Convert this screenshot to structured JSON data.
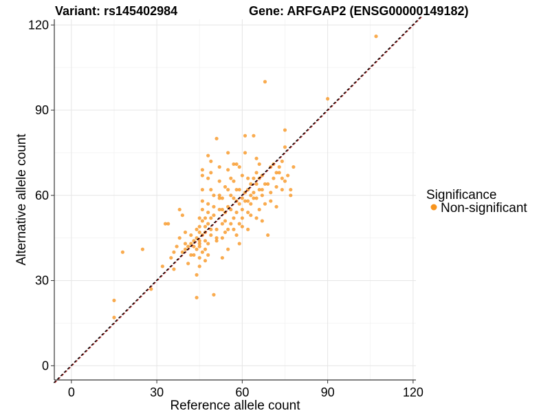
{
  "chart_data": {
    "type": "scatter",
    "title_left": "Variant: rs145402984",
    "title_right": "Gene: ARFGAP2 (ENSG00000149182)",
    "xlabel": "Reference allele count",
    "ylabel": "Alternative allele count",
    "xlim": [
      -6,
      121
    ],
    "ylim": [
      -5,
      122
    ],
    "xticks": [
      0,
      30,
      60,
      90,
      120
    ],
    "yticks": [
      0,
      30,
      60,
      90,
      120
    ],
    "grid": true,
    "legend": {
      "title": "Significance",
      "position": "right",
      "entries": [
        {
          "label": "Non-significant",
          "color": "#F7941D"
        }
      ]
    },
    "point_color": "#F7941D",
    "reference_lines": [
      {
        "slope": 1,
        "intercept": 0,
        "color": "#B22222",
        "style": "dashed"
      },
      {
        "slope": 1,
        "intercept": 0,
        "color": "#000000",
        "style": "dashed"
      }
    ],
    "points": [
      [
        107,
        116
      ],
      [
        90,
        94
      ],
      [
        68,
        100
      ],
      [
        15,
        23
      ],
      [
        15,
        17
      ],
      [
        18,
        40
      ],
      [
        25,
        41
      ],
      [
        28,
        27
      ],
      [
        32,
        35
      ],
      [
        33,
        50
      ],
      [
        34,
        50
      ],
      [
        35,
        38
      ],
      [
        36,
        34
      ],
      [
        37,
        42
      ],
      [
        38,
        55
      ],
      [
        38,
        45
      ],
      [
        39,
        53
      ],
      [
        39,
        40
      ],
      [
        40,
        47
      ],
      [
        40,
        43
      ],
      [
        41,
        42
      ],
      [
        41,
        36
      ],
      [
        42,
        46
      ],
      [
        42,
        39
      ],
      [
        43,
        44
      ],
      [
        43,
        42
      ],
      [
        43,
        39
      ],
      [
        44,
        48
      ],
      [
        44,
        45
      ],
      [
        44,
        41
      ],
      [
        44,
        32
      ],
      [
        44,
        24
      ],
      [
        45,
        52
      ],
      [
        45,
        49
      ],
      [
        45,
        47
      ],
      [
        45,
        44
      ],
      [
        45,
        43
      ],
      [
        45,
        42
      ],
      [
        45,
        38
      ],
      [
        45,
        35
      ],
      [
        46,
        69
      ],
      [
        46,
        67
      ],
      [
        46,
        62
      ],
      [
        46,
        58
      ],
      [
        46,
        55
      ],
      [
        46,
        51
      ],
      [
        46,
        46
      ],
      [
        46,
        40
      ],
      [
        47,
        52
      ],
      [
        47,
        49
      ],
      [
        47,
        47
      ],
      [
        47,
        44
      ],
      [
        47,
        41
      ],
      [
        47,
        37
      ],
      [
        48,
        74
      ],
      [
        48,
        66
      ],
      [
        48,
        57
      ],
      [
        48,
        54
      ],
      [
        48,
        50
      ],
      [
        48,
        43
      ],
      [
        48,
        39
      ],
      [
        49,
        72
      ],
      [
        49,
        68
      ],
      [
        49,
        62
      ],
      [
        49,
        52
      ],
      [
        49,
        48
      ],
      [
        49,
        46
      ],
      [
        50,
        60
      ],
      [
        50,
        56
      ],
      [
        50,
        25
      ],
      [
        51,
        80
      ],
      [
        51,
        48
      ],
      [
        51,
        45
      ],
      [
        51,
        44
      ],
      [
        52,
        70
      ],
      [
        52,
        65
      ],
      [
        52,
        60
      ],
      [
        52,
        59
      ],
      [
        53,
        59
      ],
      [
        53,
        55
      ],
      [
        53,
        50
      ],
      [
        53,
        45
      ],
      [
        53,
        38
      ],
      [
        54,
        63
      ],
      [
        54,
        51
      ],
      [
        54,
        47
      ],
      [
        55,
        75
      ],
      [
        55,
        69
      ],
      [
        55,
        62
      ],
      [
        55,
        56
      ],
      [
        55,
        48
      ],
      [
        55,
        41
      ],
      [
        56,
        66
      ],
      [
        56,
        60
      ],
      [
        56,
        55
      ],
      [
        56,
        50
      ],
      [
        57,
        71
      ],
      [
        57,
        65
      ],
      [
        57,
        52
      ],
      [
        57,
        48
      ],
      [
        58,
        71
      ],
      [
        58,
        62
      ],
      [
        58,
        58
      ],
      [
        58,
        54
      ],
      [
        59,
        70
      ],
      [
        59,
        62
      ],
      [
        59,
        57
      ],
      [
        59,
        50
      ],
      [
        59,
        43
      ],
      [
        60,
        67
      ],
      [
        60,
        59
      ],
      [
        60,
        55
      ],
      [
        60,
        49
      ],
      [
        61,
        81
      ],
      [
        61,
        75
      ],
      [
        61,
        61
      ],
      [
        61,
        58
      ],
      [
        62,
        66
      ],
      [
        62,
        62
      ],
      [
        62,
        58
      ],
      [
        62,
        54
      ],
      [
        62,
        48
      ],
      [
        63,
        60
      ],
      [
        63,
        57
      ],
      [
        63,
        53
      ],
      [
        64,
        81
      ],
      [
        64,
        66
      ],
      [
        64,
        61
      ],
      [
        64,
        59
      ],
      [
        65,
        73
      ],
      [
        65,
        68
      ],
      [
        65,
        64
      ],
      [
        65,
        59
      ],
      [
        65,
        52
      ],
      [
        66,
        66
      ],
      [
        66,
        62
      ],
      [
        66,
        55
      ],
      [
        67,
        67
      ],
      [
        67,
        62
      ],
      [
        67,
        60
      ],
      [
        67,
        51
      ],
      [
        68,
        64
      ],
      [
        68,
        57
      ],
      [
        69,
        46
      ],
      [
        70,
        70
      ],
      [
        70,
        61
      ],
      [
        70,
        58
      ],
      [
        71,
        71
      ],
      [
        71,
        66
      ],
      [
        72,
        63
      ],
      [
        72,
        56
      ],
      [
        73,
        70
      ],
      [
        73,
        68
      ],
      [
        74,
        72
      ],
      [
        74,
        66
      ],
      [
        74,
        62
      ],
      [
        75,
        83
      ],
      [
        75,
        77
      ],
      [
        75,
        65
      ],
      [
        76,
        67
      ],
      [
        77,
        62
      ],
      [
        77,
        60
      ],
      [
        78,
        70
      ],
      [
        50,
        53
      ],
      [
        52,
        55
      ],
      [
        54,
        54
      ],
      [
        57,
        59
      ],
      [
        63,
        64
      ],
      [
        40,
        41
      ],
      [
        42,
        43
      ],
      [
        36,
        40
      ],
      [
        58,
        46
      ],
      [
        60,
        52
      ],
      [
        66,
        71
      ],
      [
        69,
        64
      ],
      [
        72,
        68
      ]
    ]
  }
}
